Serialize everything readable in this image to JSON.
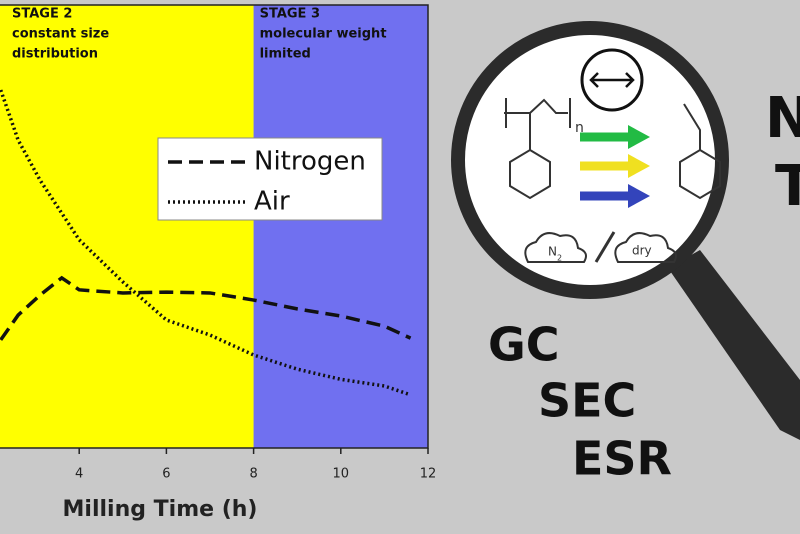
{
  "chart_data": {
    "type": "line",
    "x_label": "Milling Time (h)",
    "x": [
      2.2,
      2.6,
      3.1,
      3.6,
      4,
      5,
      6,
      7,
      8,
      9,
      10,
      11,
      11.6
    ],
    "series": [
      {
        "name": "Nitrogen",
        "color": "#111111",
        "dash": "dashed",
        "values": [
          24.4,
          30,
          34.5,
          38.4,
          35.7,
          35,
          35.2,
          35,
          33.4,
          31.4,
          29.8,
          27.5,
          24.8
        ]
      },
      {
        "name": "Air",
        "color": "#111111",
        "dash": "dotted",
        "values": [
          80.8,
          69.5,
          60.5,
          53,
          47,
          37.5,
          28.9,
          25.5,
          21,
          17.8,
          15.5,
          14,
          12
        ]
      }
    ],
    "xlim": [
      2,
      12
    ],
    "xticks": [
      4,
      6,
      8,
      10,
      12
    ],
    "ylim": [
      0,
      100
    ],
    "regions": [
      {
        "xlim": [
          2,
          8
        ],
        "color": "#ffff00",
        "lines": [
          "STAGE 2",
          "constant size",
          "distribution"
        ]
      },
      {
        "xlim": [
          8,
          12
        ],
        "color": "#7070f0",
        "lines": [
          "STAGE 3",
          "molecular weight",
          "limited"
        ]
      }
    ]
  },
  "diagram": {
    "techniques": [
      "GC",
      "SEC",
      "ESR"
    ],
    "cropped_title": [
      "N",
      "T"
    ],
    "repeat_unit": "n",
    "cloud_left": "N",
    "cloud_left_sub": "2",
    "cloud_right": "dry"
  }
}
